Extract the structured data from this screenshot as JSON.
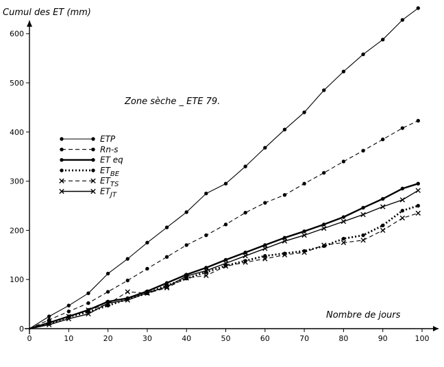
{
  "chart_data": {
    "type": "line",
    "title": "Zone sèche _ ETE 79.",
    "ylabel": "Cumul des ET (mm)",
    "xlabel": "Nombre de jours",
    "xlim": [
      0,
      105
    ],
    "ylim": [
      0,
      680
    ],
    "x_ticks": [
      0,
      10,
      20,
      30,
      40,
      50,
      60,
      70,
      80,
      90,
      100
    ],
    "y_ticks": [
      0,
      100,
      200,
      300,
      400,
      500,
      600
    ],
    "grid": false,
    "legend_position": "left",
    "series": [
      {
        "name": "ETP",
        "line_style": "thin-solid",
        "marker": "dot",
        "x": [
          0,
          5,
          10,
          15,
          20,
          25,
          30,
          35,
          40,
          45,
          50,
          55,
          60,
          65,
          70,
          75,
          80,
          85,
          90,
          95,
          99
        ],
        "y": [
          0,
          25,
          47,
          72,
          112,
          142,
          175,
          206,
          237,
          275,
          295,
          330,
          368,
          405,
          440,
          485,
          523,
          558,
          588,
          628,
          652
        ]
      },
      {
        "name": "Rn-s",
        "line_style": "dashed",
        "marker": "dot",
        "x": [
          0,
          5,
          10,
          15,
          20,
          25,
          30,
          35,
          40,
          45,
          50,
          55,
          60,
          65,
          70,
          75,
          80,
          85,
          90,
          95,
          99
        ],
        "y": [
          0,
          18,
          35,
          52,
          75,
          98,
          122,
          146,
          170,
          190,
          212,
          236,
          256,
          272,
          295,
          317,
          340,
          362,
          385,
          408,
          423
        ]
      },
      {
        "name": "ET eq",
        "line_style": "thick-solid",
        "marker": "dot",
        "x": [
          0,
          5,
          10,
          15,
          20,
          25,
          30,
          35,
          40,
          45,
          50,
          55,
          60,
          65,
          70,
          75,
          80,
          85,
          90,
          95,
          99
        ],
        "y": [
          0,
          12,
          25,
          38,
          55,
          62,
          76,
          93,
          110,
          124,
          140,
          155,
          170,
          185,
          198,
          212,
          227,
          246,
          264,
          285,
          295
        ]
      },
      {
        "name": "ET_BE",
        "line_style": "thick-dotted",
        "marker": "dot",
        "x": [
          0,
          5,
          10,
          15,
          20,
          25,
          30,
          35,
          40,
          45,
          50,
          55,
          60,
          65,
          70,
          75,
          80,
          85,
          90,
          95,
          99
        ],
        "y": [
          0,
          10,
          24,
          34,
          47,
          60,
          72,
          88,
          102,
          115,
          128,
          138,
          148,
          153,
          158,
          168,
          183,
          190,
          210,
          240,
          250
        ]
      },
      {
        "name": "ET_TS",
        "line_style": "dashed",
        "marker": "x",
        "x": [
          0,
          5,
          10,
          15,
          20,
          25,
          30,
          35,
          40,
          45,
          50,
          55,
          60,
          65,
          70,
          75,
          80,
          85,
          90,
          95,
          99
        ],
        "y": [
          0,
          12,
          25,
          38,
          50,
          75,
          72,
          83,
          103,
          108,
          127,
          135,
          142,
          150,
          155,
          170,
          175,
          180,
          200,
          225,
          235
        ]
      },
      {
        "name": "ET_JT",
        "line_style": "solid",
        "marker": "x",
        "x": [
          0,
          5,
          10,
          15,
          20,
          25,
          30,
          35,
          40,
          45,
          50,
          55,
          60,
          65,
          70,
          75,
          80,
          85,
          90,
          95,
          99
        ],
        "y": [
          0,
          8,
          20,
          30,
          52,
          58,
          73,
          85,
          107,
          118,
          133,
          148,
          163,
          178,
          190,
          204,
          218,
          232,
          248,
          262,
          281
        ]
      }
    ]
  },
  "legend_labels": {
    "etp": "ETP",
    "rns": "Rn-s",
    "eteq": "ET eq",
    "etbe_main": "ET",
    "etbe_sub": "BE",
    "etts_main": "ET",
    "etts_sub": "TS",
    "etjt_main": "ET",
    "etjt_sub": "JT"
  },
  "colors": {
    "ink": "#000000",
    "background": "#ffffff"
  }
}
